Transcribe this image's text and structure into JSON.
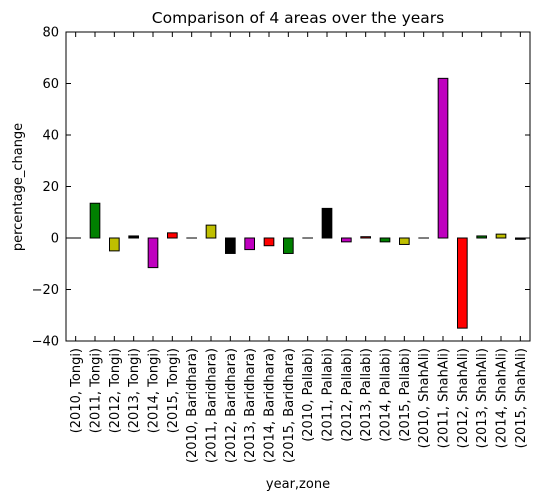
{
  "chart_data": {
    "type": "bar",
    "title": "Comparison of 4 areas over the years",
    "xlabel": "year,zone",
    "ylabel": "percentage_change",
    "ylim": [
      -40,
      80
    ],
    "yticks": [
      -40,
      -20,
      0,
      20,
      40,
      60,
      80
    ],
    "yticklabels": [
      "−40",
      "−20",
      "0",
      "20",
      "40",
      "60",
      "80"
    ],
    "grid": false,
    "categories": [
      "(2010, Tongi)",
      "(2011, Tongi)",
      "(2012, Tongi)",
      "(2013, Tongi)",
      "(2014, Tongi)",
      "(2015, Tongi)",
      "(2010, Baridhara)",
      "(2011, Baridhara)",
      "(2012, Baridhara)",
      "(2013, Baridhara)",
      "(2014, Baridhara)",
      "(2015, Baridhara)",
      "(2010, Pallabi)",
      "(2011, Pallabi)",
      "(2012, Pallabi)",
      "(2013, Pallabi)",
      "(2014, Pallabi)",
      "(2015, Pallabi)",
      "(2010, ShahAli)",
      "(2011, ShahAli)",
      "(2012, ShahAli)",
      "(2013, ShahAli)",
      "(2014, ShahAli)",
      "(2015, ShahAli)"
    ],
    "values": [
      0,
      13.5,
      -5,
      0.8,
      -11.5,
      2,
      0,
      5,
      -6,
      -4.5,
      -3,
      -6,
      0,
      11.5,
      -1.5,
      0.5,
      -1.5,
      -2.5,
      0,
      62,
      -35,
      0.8,
      1.5,
      -0.5
    ],
    "colors": [
      "#ff0000",
      "#008000",
      "#bfbf00",
      "#000000",
      "#bf00bf"
    ]
  }
}
